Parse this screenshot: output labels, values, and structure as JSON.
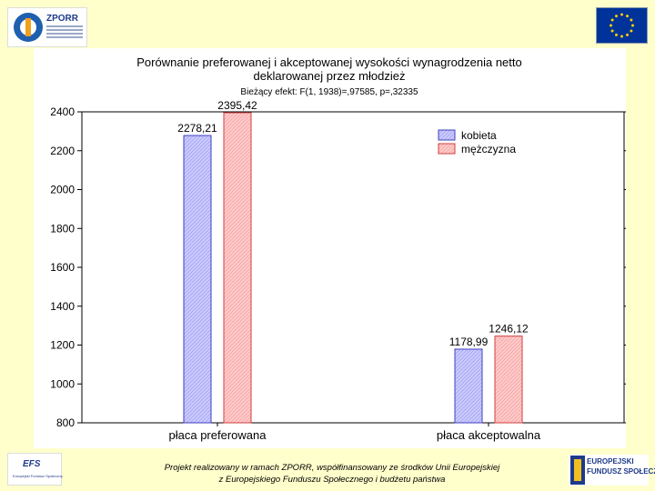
{
  "header": {
    "left_logo_text": "ZPORR"
  },
  "chart_data": {
    "type": "bar",
    "title": "Porównanie preferowanej i akceptowanej wysokości wynagrodzenia netto deklarowanej przez młodzież",
    "title_line1": "Porównanie preferowanej i akceptowanej wysokości wynagrodzenia netto",
    "title_line2": "deklarowanej przez młodzież",
    "subtitle": "Bieżący efekt: F(1, 1938)=,97585, p=,32335",
    "categories": [
      "płaca preferowana",
      "płaca akceptowalna"
    ],
    "series": [
      {
        "name": "kobieta",
        "values": [
          2278.21,
          1178.99
        ],
        "labels": [
          "2278,21",
          "1178,99"
        ],
        "color": "#c8c8ff",
        "edge": "#4040c0"
      },
      {
        "name": "mężczyzna",
        "values": [
          2395.42,
          1246.12
        ],
        "labels": [
          "2395,42",
          "1246,12"
        ],
        "color": "#ffc8c8",
        "edge": "#d04040"
      }
    ],
    "ylim": [
      800,
      2400
    ],
    "yticks": [
      "800",
      "1000",
      "1200",
      "1400",
      "1600",
      "1800",
      "2000",
      "2200",
      "2400"
    ],
    "xlabel": "",
    "ylabel": "",
    "legend_position": "top-right"
  },
  "footer": {
    "line1": "Projekt realizowany w ramach ZPORR, współfinansowany ze środków Unii Europejskiej",
    "line2": "z Europejskiego Funduszu Społecznego i budżetu państwa",
    "left_logo_text": "EFS",
    "left_logo_small": "Europejski Fundusz Społeczny",
    "right_logo_line1": "EUROPEJSKI",
    "right_logo_line2": "FUNDUSZ SPOŁECZNY"
  }
}
